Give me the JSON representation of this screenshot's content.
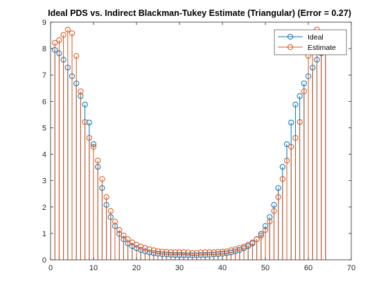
{
  "chart_data": {
    "type": "stem",
    "title": "Ideal PDS vs. Indirect Blackman-Tukey Estimate (Triangular) (Error =  0.27)",
    "xlabel": "",
    "ylabel": "",
    "xlim": [
      0,
      70
    ],
    "ylim": [
      0,
      9
    ],
    "xticks": [
      "0",
      "10",
      "20",
      "30",
      "40",
      "50",
      "60",
      "70"
    ],
    "yticks": [
      "0",
      "1",
      "2",
      "3",
      "4",
      "5",
      "6",
      "7",
      "8",
      "9"
    ],
    "grid": false,
    "legend_position": "top-right",
    "x": [
      1,
      2,
      3,
      4,
      5,
      6,
      7,
      8,
      9,
      10,
      11,
      12,
      13,
      14,
      15,
      16,
      17,
      18,
      19,
      20,
      21,
      22,
      23,
      24,
      25,
      26,
      27,
      28,
      29,
      30,
      31,
      32,
      33,
      34,
      35,
      36,
      37,
      38,
      39,
      40,
      41,
      42,
      43,
      44,
      45,
      46,
      47,
      48,
      49,
      50,
      51,
      52,
      53,
      54,
      55,
      56,
      57,
      58,
      59,
      60,
      61,
      62,
      63,
      64
    ],
    "series": [
      {
        "name": "Ideal",
        "color": "#0072BD",
        "values": [
          7.95,
          7.82,
          7.58,
          7.28,
          6.95,
          6.68,
          6.2,
          5.88,
          5.2,
          4.38,
          3.52,
          2.72,
          2.08,
          1.62,
          1.28,
          0.98,
          0.78,
          0.62,
          0.52,
          0.44,
          0.37,
          0.32,
          0.28,
          0.25,
          0.23,
          0.21,
          0.2,
          0.19,
          0.18,
          0.18,
          0.17,
          0.17,
          0.17,
          0.17,
          0.18,
          0.18,
          0.19,
          0.2,
          0.21,
          0.23,
          0.25,
          0.28,
          0.32,
          0.37,
          0.44,
          0.52,
          0.62,
          0.78,
          0.98,
          1.28,
          1.62,
          2.08,
          2.72,
          3.52,
          4.38,
          5.2,
          5.88,
          6.2,
          6.68,
          6.95,
          7.28,
          7.58,
          7.82,
          7.95
        ]
      },
      {
        "name": "Estimate",
        "color": "#D95319",
        "values": [
          8.22,
          8.32,
          8.52,
          8.72,
          8.58,
          7.72,
          6.38,
          5.22,
          4.62,
          4.28,
          3.76,
          3.06,
          2.38,
          1.85,
          1.45,
          1.13,
          0.92,
          0.78,
          0.66,
          0.57,
          0.5,
          0.45,
          0.4,
          0.36,
          0.33,
          0.31,
          0.3,
          0.29,
          0.29,
          0.29,
          0.29,
          0.28,
          0.26,
          0.26,
          0.28,
          0.29,
          0.29,
          0.29,
          0.3,
          0.31,
          0.33,
          0.36,
          0.4,
          0.45,
          0.5,
          0.57,
          0.66,
          0.78,
          0.92,
          1.13,
          1.45,
          1.85,
          2.38,
          3.06,
          3.76,
          4.28,
          4.62,
          5.22,
          6.38,
          7.72,
          8.58,
          8.72,
          8.52,
          8.32
        ]
      }
    ]
  }
}
